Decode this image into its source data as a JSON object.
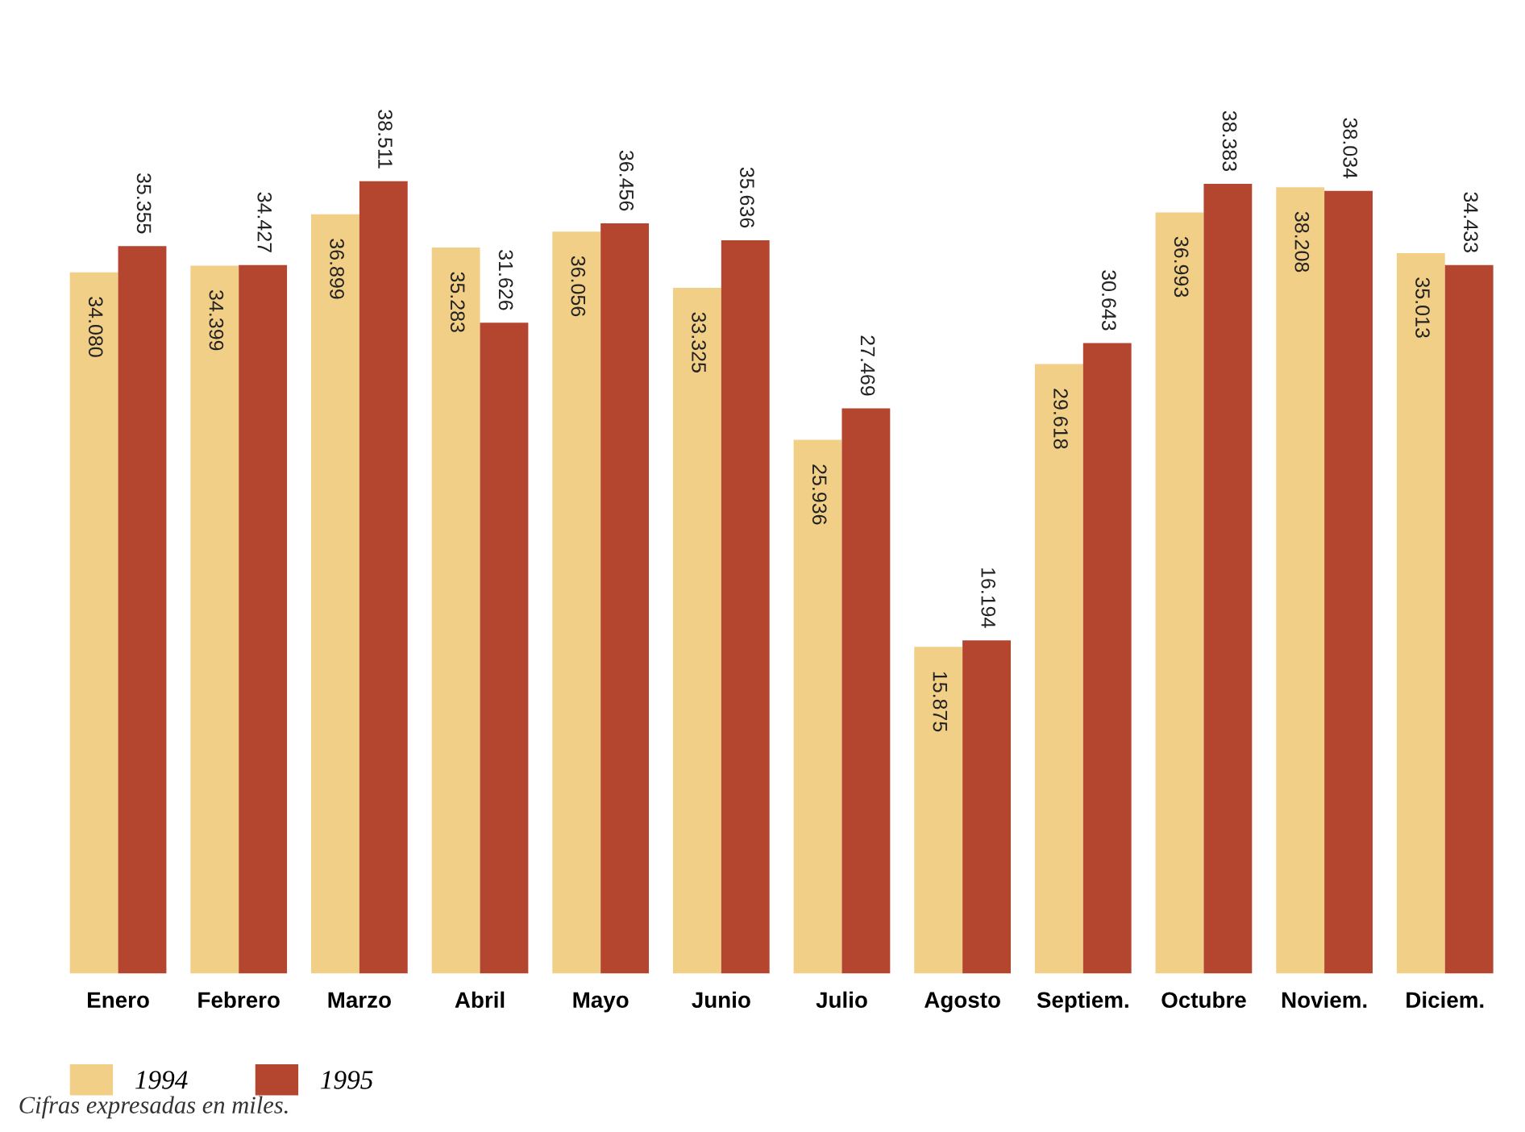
{
  "chart_data": {
    "type": "bar",
    "categories": [
      "Enero",
      "Febrero",
      "Marzo",
      "Abril",
      "Mayo",
      "Junio",
      "Julio",
      "Agosto",
      "Septiem.",
      "Octubre",
      "Noviem.",
      "Diciem."
    ],
    "series": [
      {
        "name": "1994",
        "color": "#f2cf86",
        "values": [
          34080,
          34399,
          36899,
          35283,
          36056,
          33325,
          25936,
          15875,
          29618,
          36993,
          38208,
          35013
        ],
        "value_labels": [
          "34.080",
          "34.399",
          "36.899",
          "35.283",
          "36.056",
          "33.325",
          "25.936",
          "15.875",
          "29.618",
          "36.993",
          "38.208",
          "35.013"
        ]
      },
      {
        "name": "1995",
        "color": "#b4452f",
        "values": [
          35355,
          34427,
          38511,
          31626,
          36456,
          35636,
          27469,
          16194,
          30643,
          38383,
          38034,
          34433
        ],
        "value_labels": [
          "35.355",
          "34.427",
          "38.511",
          "31.626",
          "36.456",
          "35.636",
          "27.469",
          "16.194",
          "30.643",
          "38.383",
          "38.034",
          "34.433"
        ]
      }
    ],
    "legend": "bottom left",
    "annotations": [
      "Cifras expresadas en miles."
    ]
  }
}
